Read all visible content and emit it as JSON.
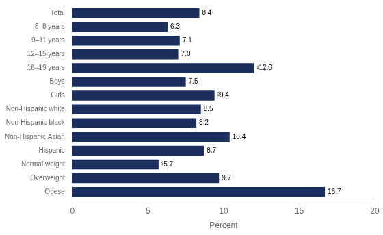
{
  "chart_data": {
    "type": "bar",
    "orientation": "horizontal",
    "categories": [
      "Obese",
      "Overweight",
      "Normal weight",
      "Hispanic",
      "Non-Hispanic Asian",
      "Non-Hispanic black",
      "Non-Hispanic white",
      "Girls",
      "Boys",
      "16–19 years",
      "12–15 years",
      "9–11 years",
      "6–8 years",
      "Total"
    ],
    "values": [
      16.7,
      9.7,
      5.7,
      8.7,
      10.4,
      8.2,
      8.5,
      9.4,
      7.5,
      12.0,
      7.0,
      7.1,
      6.3,
      8.4
    ],
    "value_labels": [
      "16.7",
      "9.7",
      "³5.7",
      "8.7",
      "10.4",
      "8.2",
      "8.5",
      "²9.4",
      "7.5",
      "¹12.0",
      "7.0",
      "7.1",
      "6.3",
      "8.4"
    ],
    "data_labels": true,
    "color": "#1b2f5e",
    "xlabel": "Percent",
    "xlim": [
      0,
      20
    ],
    "xticks": [
      0,
      5,
      10,
      15,
      20
    ],
    "grid": false
  }
}
